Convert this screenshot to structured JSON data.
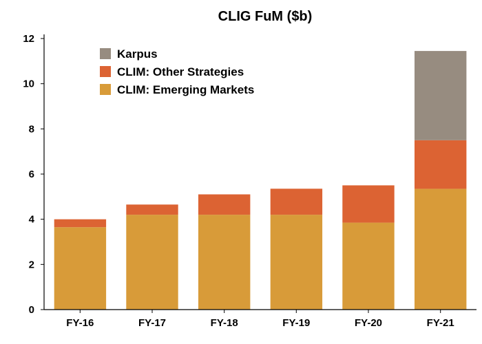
{
  "chart_data": {
    "type": "bar",
    "stacked": true,
    "title": "CLIG FuM ($b)",
    "xlabel": "",
    "ylabel": "",
    "categories": [
      "FY-16",
      "FY-17",
      "FY-18",
      "FY-19",
      "FY-20",
      "FY-21"
    ],
    "ylim": [
      0,
      12
    ],
    "yticks": [
      0,
      2,
      4,
      6,
      8,
      10,
      12
    ],
    "grid": false,
    "legend_position": "top-left",
    "series": [
      {
        "name": "CLIM: Emerging Markets",
        "color": "#D89B39",
        "values": [
          3.65,
          4.2,
          4.2,
          4.2,
          3.85,
          5.35
        ]
      },
      {
        "name": "CLIM: Other Strategies",
        "color": "#DC6333",
        "values": [
          0.35,
          0.45,
          0.9,
          1.15,
          1.65,
          2.15
        ]
      },
      {
        "name": "Karpus",
        "color": "#978C80",
        "values": [
          0,
          0,
          0,
          0,
          0,
          3.95
        ]
      }
    ],
    "legend_order": [
      "Karpus",
      "CLIM: Other Strategies",
      "CLIM: Emerging Markets"
    ]
  }
}
